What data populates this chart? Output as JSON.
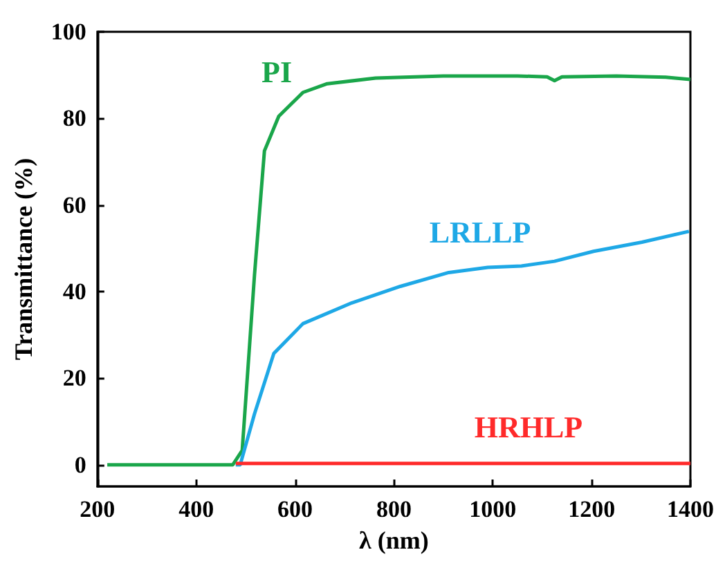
{
  "chart_data": {
    "type": "line",
    "xlabel": "λ (nm)",
    "ylabel": "Transmittance (%)",
    "xlim": [
      200,
      1400
    ],
    "xticks": [
      200,
      400,
      600,
      800,
      1000,
      1200,
      1400
    ],
    "ylim": [
      -5,
      100
    ],
    "yticks": [
      0,
      20,
      40,
      60,
      80,
      100
    ],
    "marker": "none",
    "line_style": "solid",
    "series": [
      {
        "name": "PI",
        "color": "#1aa64a",
        "x": [
          220,
          300,
          400,
          474,
          493,
          518,
          538,
          567,
          616,
          665,
          763,
          900,
          1050,
          1110,
          1125,
          1140,
          1250,
          1350,
          1400
        ],
        "values": [
          0,
          0,
          0,
          0,
          3.3,
          44,
          72.5,
          80.5,
          86,
          88,
          89.3,
          89.8,
          89.8,
          89.6,
          88.7,
          89.6,
          89.8,
          89.5,
          89
        ]
      },
      {
        "name": "LRLLP",
        "color": "#1ea8e6",
        "x": [
          480,
          489,
          518,
          557,
          616,
          715,
          813,
          911,
          990,
          1058,
          1125,
          1204,
          1302,
          1397
        ],
        "values": [
          0,
          0,
          11.8,
          25.7,
          32.6,
          37.4,
          41.2,
          44.4,
          45.6,
          45.9,
          47,
          49.3,
          51.4,
          53.9
        ]
      },
      {
        "name": "HRHLP",
        "color": "#ff2a2a",
        "x": [
          480,
          700,
          1000,
          1400
        ],
        "values": [
          0.3,
          0.3,
          0.3,
          0.3
        ]
      }
    ]
  }
}
